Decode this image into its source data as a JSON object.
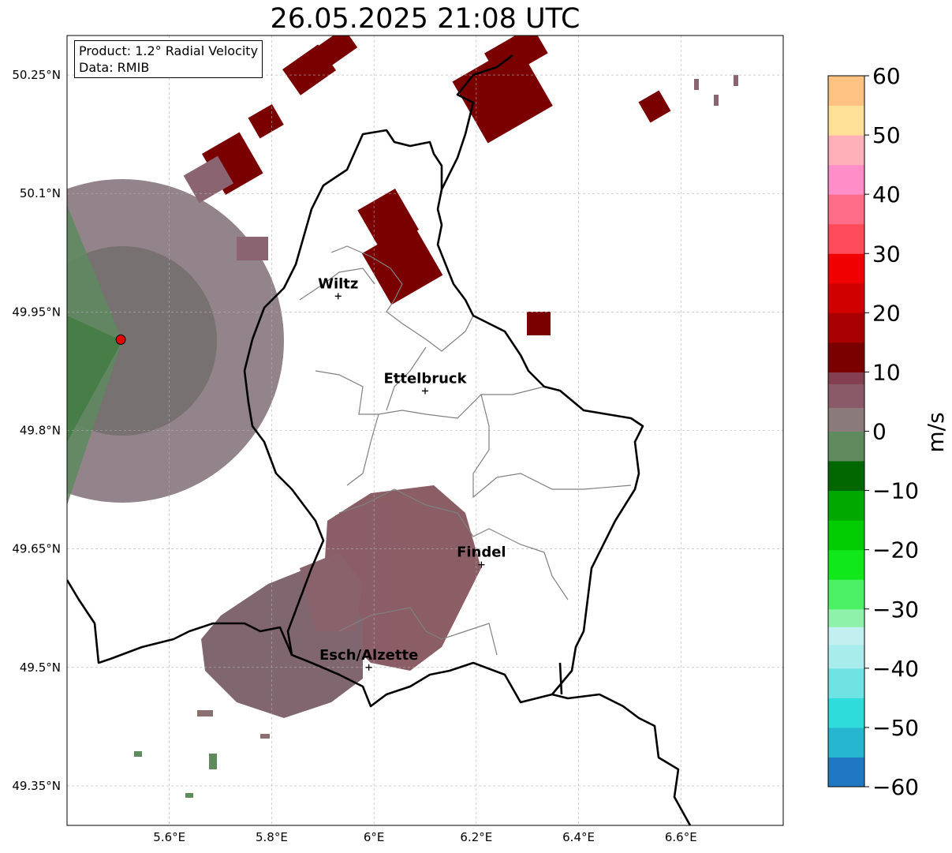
{
  "title": "26.05.2025 21:08 UTC",
  "info": {
    "product": "Product: 1.2° Radial Velocity",
    "data": "Data: RMIB"
  },
  "axes": {
    "lon_ticks": [
      {
        "value": 5.6,
        "label": "5.6°E"
      },
      {
        "value": 5.8,
        "label": "5.8°E"
      },
      {
        "value": 6.0,
        "label": "6°E"
      },
      {
        "value": 6.2,
        "label": "6.2°E"
      },
      {
        "value": 6.4,
        "label": "6.4°E"
      },
      {
        "value": 6.6,
        "label": "6.6°E"
      }
    ],
    "lat_ticks": [
      {
        "value": 50.25,
        "label": "50.25°N"
      },
      {
        "value": 50.1,
        "label": "50.1°N"
      },
      {
        "value": 49.95,
        "label": "49.95°N"
      },
      {
        "value": 49.8,
        "label": "49.8°N"
      },
      {
        "value": 49.65,
        "label": "49.65°N"
      },
      {
        "value": 49.5,
        "label": "49.5°N"
      },
      {
        "value": 49.35,
        "label": "49.35°N"
      }
    ],
    "lon_range": [
      5.4,
      6.8
    ],
    "lat_range": [
      49.3,
      50.3
    ],
    "grid": true
  },
  "cities": [
    {
      "name": "Wiltz",
      "lon": 5.93,
      "lat": 49.97
    },
    {
      "name": "Ettelbruck",
      "lon": 6.1,
      "lat": 49.85
    },
    {
      "name": "Findel",
      "lon": 6.21,
      "lat": 49.63
    },
    {
      "name": "Esch/Alzette",
      "lon": 5.99,
      "lat": 49.5
    }
  ],
  "radar_site": {
    "lon": 5.505,
    "lat": 49.915,
    "color": "#e00000"
  },
  "colorbar": {
    "label": "m/s",
    "min": -60,
    "max": 60,
    "ticks": [
      {
        "value": 60,
        "label": "60"
      },
      {
        "value": 50,
        "label": "50"
      },
      {
        "value": 40,
        "label": "40"
      },
      {
        "value": 30,
        "label": "30"
      },
      {
        "value": 20,
        "label": "20"
      },
      {
        "value": 10,
        "label": "10"
      },
      {
        "value": 0,
        "label": "0"
      },
      {
        "value": -10,
        "label": "−10"
      },
      {
        "value": -20,
        "label": "−20"
      },
      {
        "value": -30,
        "label": "−30"
      },
      {
        "value": -40,
        "label": "−40"
      },
      {
        "value": -50,
        "label": "−50"
      },
      {
        "value": -60,
        "label": "−60"
      }
    ],
    "stops": [
      {
        "v": -60,
        "c": "#1f78c1"
      },
      {
        "v": -55,
        "c": "#26b6d0"
      },
      {
        "v": -50,
        "c": "#2fdcdc"
      },
      {
        "v": -45,
        "c": "#6fe3e3"
      },
      {
        "v": -40,
        "c": "#a8ecec"
      },
      {
        "v": -36,
        "c": "#c2f0f0"
      },
      {
        "v": -33,
        "c": "#8ff2aa"
      },
      {
        "v": -30,
        "c": "#4cf064"
      },
      {
        "v": -25,
        "c": "#10e81c"
      },
      {
        "v": -20,
        "c": "#00cc00"
      },
      {
        "v": -15,
        "c": "#00a800"
      },
      {
        "v": -10,
        "c": "#006600"
      },
      {
        "v": -5,
        "c": "#5e8a5e"
      },
      {
        "v": 0,
        "c": "#8a7a7a"
      },
      {
        "v": 4,
        "c": "#8a5a68"
      },
      {
        "v": 8,
        "c": "#844050"
      },
      {
        "v": 10,
        "c": "#7a0000"
      },
      {
        "v": 15,
        "c": "#a80000"
      },
      {
        "v": 20,
        "c": "#d00000"
      },
      {
        "v": 25,
        "c": "#f00000"
      },
      {
        "v": 30,
        "c": "#ff4a5a"
      },
      {
        "v": 35,
        "c": "#ff6c88"
      },
      {
        "v": 40,
        "c": "#ff8ec8"
      },
      {
        "v": 45,
        "c": "#ffb0b8"
      },
      {
        "v": 50,
        "c": "#ffe096"
      },
      {
        "v": 55,
        "c": "#ffc282"
      },
      {
        "v": 60,
        "c": "#ffa050"
      }
    ]
  },
  "colors": {
    "border": "#000000",
    "canton": "#808080",
    "grid": "#b0b0b0"
  }
}
